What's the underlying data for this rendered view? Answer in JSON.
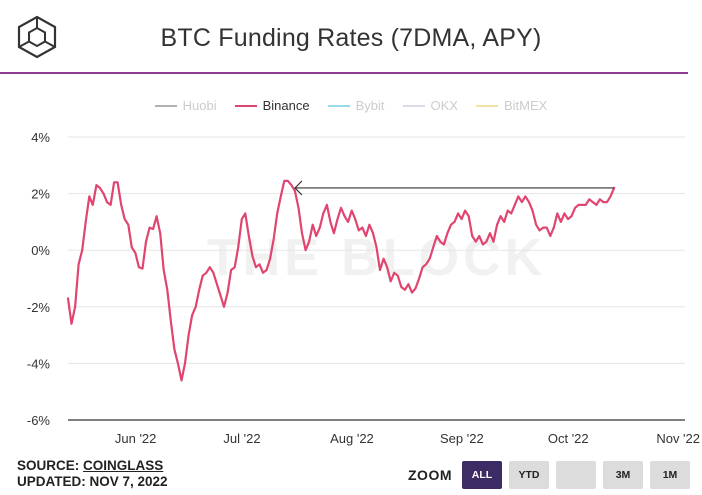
{
  "header": {
    "title": "BTC Funding Rates (7DMA, APY)"
  },
  "watermark": "THE BLOCK",
  "legend": [
    {
      "label": "Huobi",
      "color": "#b0b0b0",
      "visible": false
    },
    {
      "label": "Binance",
      "color": "#e0456f",
      "visible": true
    },
    {
      "label": "Bybit",
      "color": "#9ad9e8",
      "visible": false
    },
    {
      "label": "OKX",
      "color": "#d8dbe8",
      "visible": false
    },
    {
      "label": "BitMEX",
      "color": "#f2e3a0",
      "visible": false
    }
  ],
  "footer": {
    "source_prefix": "SOURCE: ",
    "source_link": "COINGLASS",
    "updated": "UPDATED: NOV 7, 2022"
  },
  "zoom": {
    "label": "ZOOM",
    "buttons": [
      {
        "label": "ALL",
        "active": true
      },
      {
        "label": "YTD",
        "active": false
      },
      {
        "label": "",
        "active": false
      },
      {
        "label": "3M",
        "active": false
      },
      {
        "label": "1M",
        "active": false
      }
    ]
  },
  "chart_data": {
    "type": "line",
    "title": "BTC Funding Rates (7DMA, APY)",
    "x_start": "2022-05-18",
    "x_end": "2022-11-08",
    "x_ticks": [
      {
        "date": "2022-06-01",
        "label": "Jun '22"
      },
      {
        "date": "2022-07-01",
        "label": "Jul '22"
      },
      {
        "date": "2022-08-01",
        "label": "Aug '22"
      },
      {
        "date": "2022-09-01",
        "label": "Sep '22"
      },
      {
        "date": "2022-10-01",
        "label": "Oct '22"
      },
      {
        "date": "2022-11-01",
        "label": "Nov '22"
      }
    ],
    "ylim": [
      -6,
      4
    ],
    "y_ticks": [
      4,
      2,
      0,
      -2,
      -4,
      -6
    ],
    "y_unit": "%",
    "grid": "horizontal",
    "legend_position": "top",
    "series": [
      {
        "name": "Binance",
        "color": "#e0456f",
        "points": [
          [
            "2022-05-18",
            -1.7
          ],
          [
            "2022-05-19",
            -2.6
          ],
          [
            "2022-05-20",
            -2.0
          ],
          [
            "2022-05-21",
            -0.5
          ],
          [
            "2022-05-22",
            0.0
          ],
          [
            "2022-05-23",
            1.0
          ],
          [
            "2022-05-24",
            1.9
          ],
          [
            "2022-05-25",
            1.6
          ],
          [
            "2022-05-26",
            2.3
          ],
          [
            "2022-05-27",
            2.2
          ],
          [
            "2022-05-28",
            2.0
          ],
          [
            "2022-05-29",
            1.7
          ],
          [
            "2022-05-30",
            1.6
          ],
          [
            "2022-05-31",
            2.4
          ],
          [
            "2022-06-01",
            2.4
          ],
          [
            "2022-06-02",
            1.6
          ],
          [
            "2022-06-03",
            1.1
          ],
          [
            "2022-06-04",
            0.9
          ],
          [
            "2022-06-05",
            0.1
          ],
          [
            "2022-06-06",
            -0.1
          ],
          [
            "2022-06-07",
            -0.6
          ],
          [
            "2022-06-08",
            -0.65
          ],
          [
            "2022-06-09",
            0.3
          ],
          [
            "2022-06-10",
            0.8
          ],
          [
            "2022-06-11",
            0.75
          ],
          [
            "2022-06-12",
            1.2
          ],
          [
            "2022-06-13",
            0.6
          ],
          [
            "2022-06-14",
            -0.7
          ],
          [
            "2022-06-15",
            -1.4
          ],
          [
            "2022-06-16",
            -2.5
          ],
          [
            "2022-06-17",
            -3.5
          ],
          [
            "2022-06-18",
            -4.0
          ],
          [
            "2022-06-19",
            -4.6
          ],
          [
            "2022-06-20",
            -4.0
          ],
          [
            "2022-06-21",
            -3.0
          ],
          [
            "2022-06-22",
            -2.3
          ],
          [
            "2022-06-23",
            -2.0
          ],
          [
            "2022-06-24",
            -1.4
          ],
          [
            "2022-06-25",
            -0.9
          ],
          [
            "2022-06-26",
            -0.8
          ],
          [
            "2022-06-27",
            -0.6
          ],
          [
            "2022-06-28",
            -0.8
          ],
          [
            "2022-06-29",
            -1.2
          ],
          [
            "2022-06-30",
            -1.6
          ],
          [
            "2022-07-01",
            -2.0
          ],
          [
            "2022-07-02",
            -1.5
          ],
          [
            "2022-07-03",
            -0.7
          ],
          [
            "2022-07-04",
            -0.6
          ],
          [
            "2022-07-05",
            0.1
          ],
          [
            "2022-07-06",
            1.1
          ],
          [
            "2022-07-07",
            1.3
          ],
          [
            "2022-07-08",
            0.5
          ],
          [
            "2022-07-09",
            -0.2
          ],
          [
            "2022-07-10",
            -0.6
          ],
          [
            "2022-07-11",
            -0.5
          ],
          [
            "2022-07-12",
            -0.8
          ],
          [
            "2022-07-13",
            -0.7
          ],
          [
            "2022-07-14",
            -0.3
          ],
          [
            "2022-07-15",
            0.4
          ],
          [
            "2022-07-16",
            1.3
          ],
          [
            "2022-07-17",
            1.9
          ],
          [
            "2022-07-18",
            2.45
          ],
          [
            "2022-07-19",
            2.45
          ],
          [
            "2022-07-20",
            2.3
          ],
          [
            "2022-07-21",
            2.1
          ],
          [
            "2022-07-22",
            1.5
          ],
          [
            "2022-07-23",
            0.6
          ],
          [
            "2022-07-24",
            0.0
          ],
          [
            "2022-07-25",
            0.3
          ],
          [
            "2022-07-26",
            0.9
          ],
          [
            "2022-07-27",
            0.5
          ],
          [
            "2022-07-28",
            0.8
          ],
          [
            "2022-07-29",
            1.3
          ],
          [
            "2022-07-30",
            1.6
          ],
          [
            "2022-07-31",
            1.0
          ],
          [
            "2022-08-01",
            0.6
          ],
          [
            "2022-08-02",
            1.1
          ],
          [
            "2022-08-03",
            1.5
          ],
          [
            "2022-08-04",
            1.2
          ],
          [
            "2022-08-05",
            1.0
          ],
          [
            "2022-08-06",
            1.4
          ],
          [
            "2022-08-07",
            1.1
          ],
          [
            "2022-08-08",
            0.7
          ],
          [
            "2022-08-09",
            0.8
          ],
          [
            "2022-08-10",
            0.5
          ],
          [
            "2022-08-11",
            0.9
          ],
          [
            "2022-08-12",
            0.6
          ],
          [
            "2022-08-13",
            0.1
          ],
          [
            "2022-08-14",
            -0.7
          ],
          [
            "2022-08-15",
            -0.3
          ],
          [
            "2022-08-16",
            -0.6
          ],
          [
            "2022-08-17",
            -1.1
          ],
          [
            "2022-08-18",
            -0.8
          ],
          [
            "2022-08-19",
            -0.9
          ],
          [
            "2022-08-20",
            -1.3
          ],
          [
            "2022-08-21",
            -1.4
          ],
          [
            "2022-08-22",
            -1.2
          ],
          [
            "2022-08-23",
            -1.5
          ],
          [
            "2022-08-24",
            -1.35
          ],
          [
            "2022-08-25",
            -1.0
          ],
          [
            "2022-08-26",
            -0.6
          ],
          [
            "2022-08-27",
            -0.5
          ],
          [
            "2022-08-28",
            -0.3
          ],
          [
            "2022-08-29",
            0.1
          ],
          [
            "2022-08-30",
            0.5
          ],
          [
            "2022-08-31",
            0.3
          ],
          [
            "2022-09-01",
            0.2
          ],
          [
            "2022-09-02",
            0.6
          ],
          [
            "2022-09-03",
            0.9
          ],
          [
            "2022-09-04",
            1.0
          ],
          [
            "2022-09-05",
            1.3
          ],
          [
            "2022-09-06",
            1.1
          ],
          [
            "2022-09-07",
            1.4
          ],
          [
            "2022-09-08",
            1.2
          ],
          [
            "2022-09-09",
            0.5
          ],
          [
            "2022-09-10",
            0.3
          ],
          [
            "2022-09-11",
            0.5
          ],
          [
            "2022-09-12",
            0.2
          ],
          [
            "2022-09-13",
            0.3
          ],
          [
            "2022-09-14",
            0.6
          ],
          [
            "2022-09-15",
            0.3
          ],
          [
            "2022-09-16",
            0.9
          ],
          [
            "2022-09-17",
            1.2
          ],
          [
            "2022-09-18",
            1.0
          ],
          [
            "2022-09-19",
            1.4
          ],
          [
            "2022-09-20",
            1.3
          ],
          [
            "2022-09-21",
            1.6
          ],
          [
            "2022-09-22",
            1.9
          ],
          [
            "2022-09-23",
            1.7
          ],
          [
            "2022-09-24",
            1.9
          ],
          [
            "2022-09-25",
            1.7
          ],
          [
            "2022-09-26",
            1.4
          ],
          [
            "2022-09-27",
            0.9
          ],
          [
            "2022-09-28",
            0.7
          ],
          [
            "2022-09-29",
            0.8
          ],
          [
            "2022-09-30",
            0.8
          ],
          [
            "2022-10-01",
            0.5
          ],
          [
            "2022-10-02",
            0.8
          ],
          [
            "2022-10-03",
            1.3
          ],
          [
            "2022-10-04",
            1.0
          ],
          [
            "2022-10-05",
            1.3
          ],
          [
            "2022-10-06",
            1.1
          ],
          [
            "2022-10-07",
            1.2
          ],
          [
            "2022-10-08",
            1.5
          ],
          [
            "2022-10-09",
            1.6
          ],
          [
            "2022-10-10",
            1.6
          ],
          [
            "2022-10-11",
            1.6
          ],
          [
            "2022-10-12",
            1.8
          ],
          [
            "2022-10-13",
            1.7
          ],
          [
            "2022-10-14",
            1.6
          ],
          [
            "2022-10-15",
            1.8
          ],
          [
            "2022-10-16",
            1.7
          ],
          [
            "2022-10-17",
            1.7
          ],
          [
            "2022-10-18",
            1.9
          ],
          [
            "2022-10-19",
            2.2
          ]
        ]
      }
    ],
    "annotation": {
      "type": "horizontal-arrow",
      "y": 2.2,
      "from": "2022-10-19",
      "to": "2022-07-21"
    }
  }
}
